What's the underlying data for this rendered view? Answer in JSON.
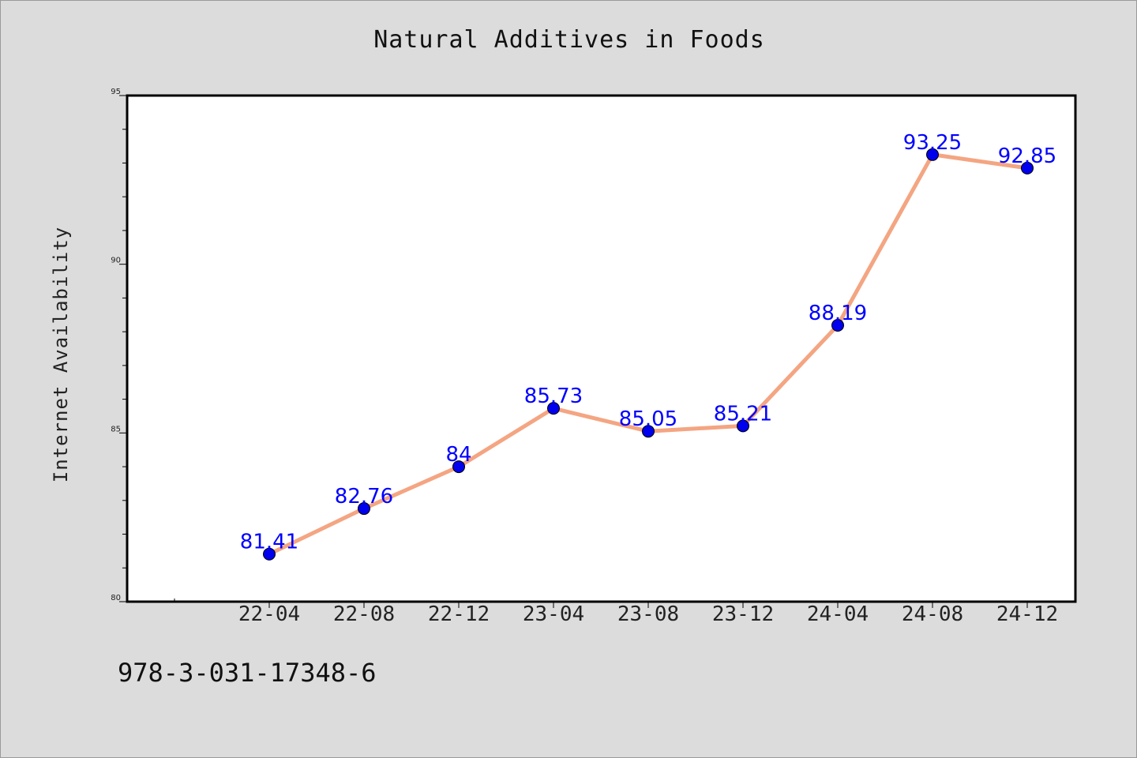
{
  "title": "Natural Additives in Foods",
  "footer_text": "978-3-031-17348-6",
  "colors": {
    "background": "#dcdcdc",
    "plot_background": "#ffffff",
    "line": "#f4a582",
    "marker": "#0000ee",
    "data_label": "#0000ff"
  },
  "chart_data": {
    "type": "line",
    "title": "Natural Additives in Foods",
    "xlabel": "",
    "ylabel": "Internet Availability",
    "categories": [
      "22-04",
      "22-08",
      "22-12",
      "23-04",
      "23-08",
      "23-12",
      "24-04",
      "24-08",
      "24-12"
    ],
    "series": [
      {
        "values": [
          81.41,
          82.76,
          84,
          85.73,
          85.05,
          85.21,
          88.19,
          93.25,
          92.85
        ],
        "labels": [
          "81.41",
          "82.76",
          "84",
          "85.73",
          "85.05",
          "85.21",
          "88.19",
          "93.25",
          "92.85"
        ]
      }
    ],
    "ylim": [
      80,
      95
    ],
    "y_ticks": [
      80,
      85,
      90,
      95
    ],
    "y_tick_labels": [
      "80",
      "85",
      "90",
      "95"
    ],
    "grid": false,
    "legend": "none",
    "marker": "circle"
  }
}
